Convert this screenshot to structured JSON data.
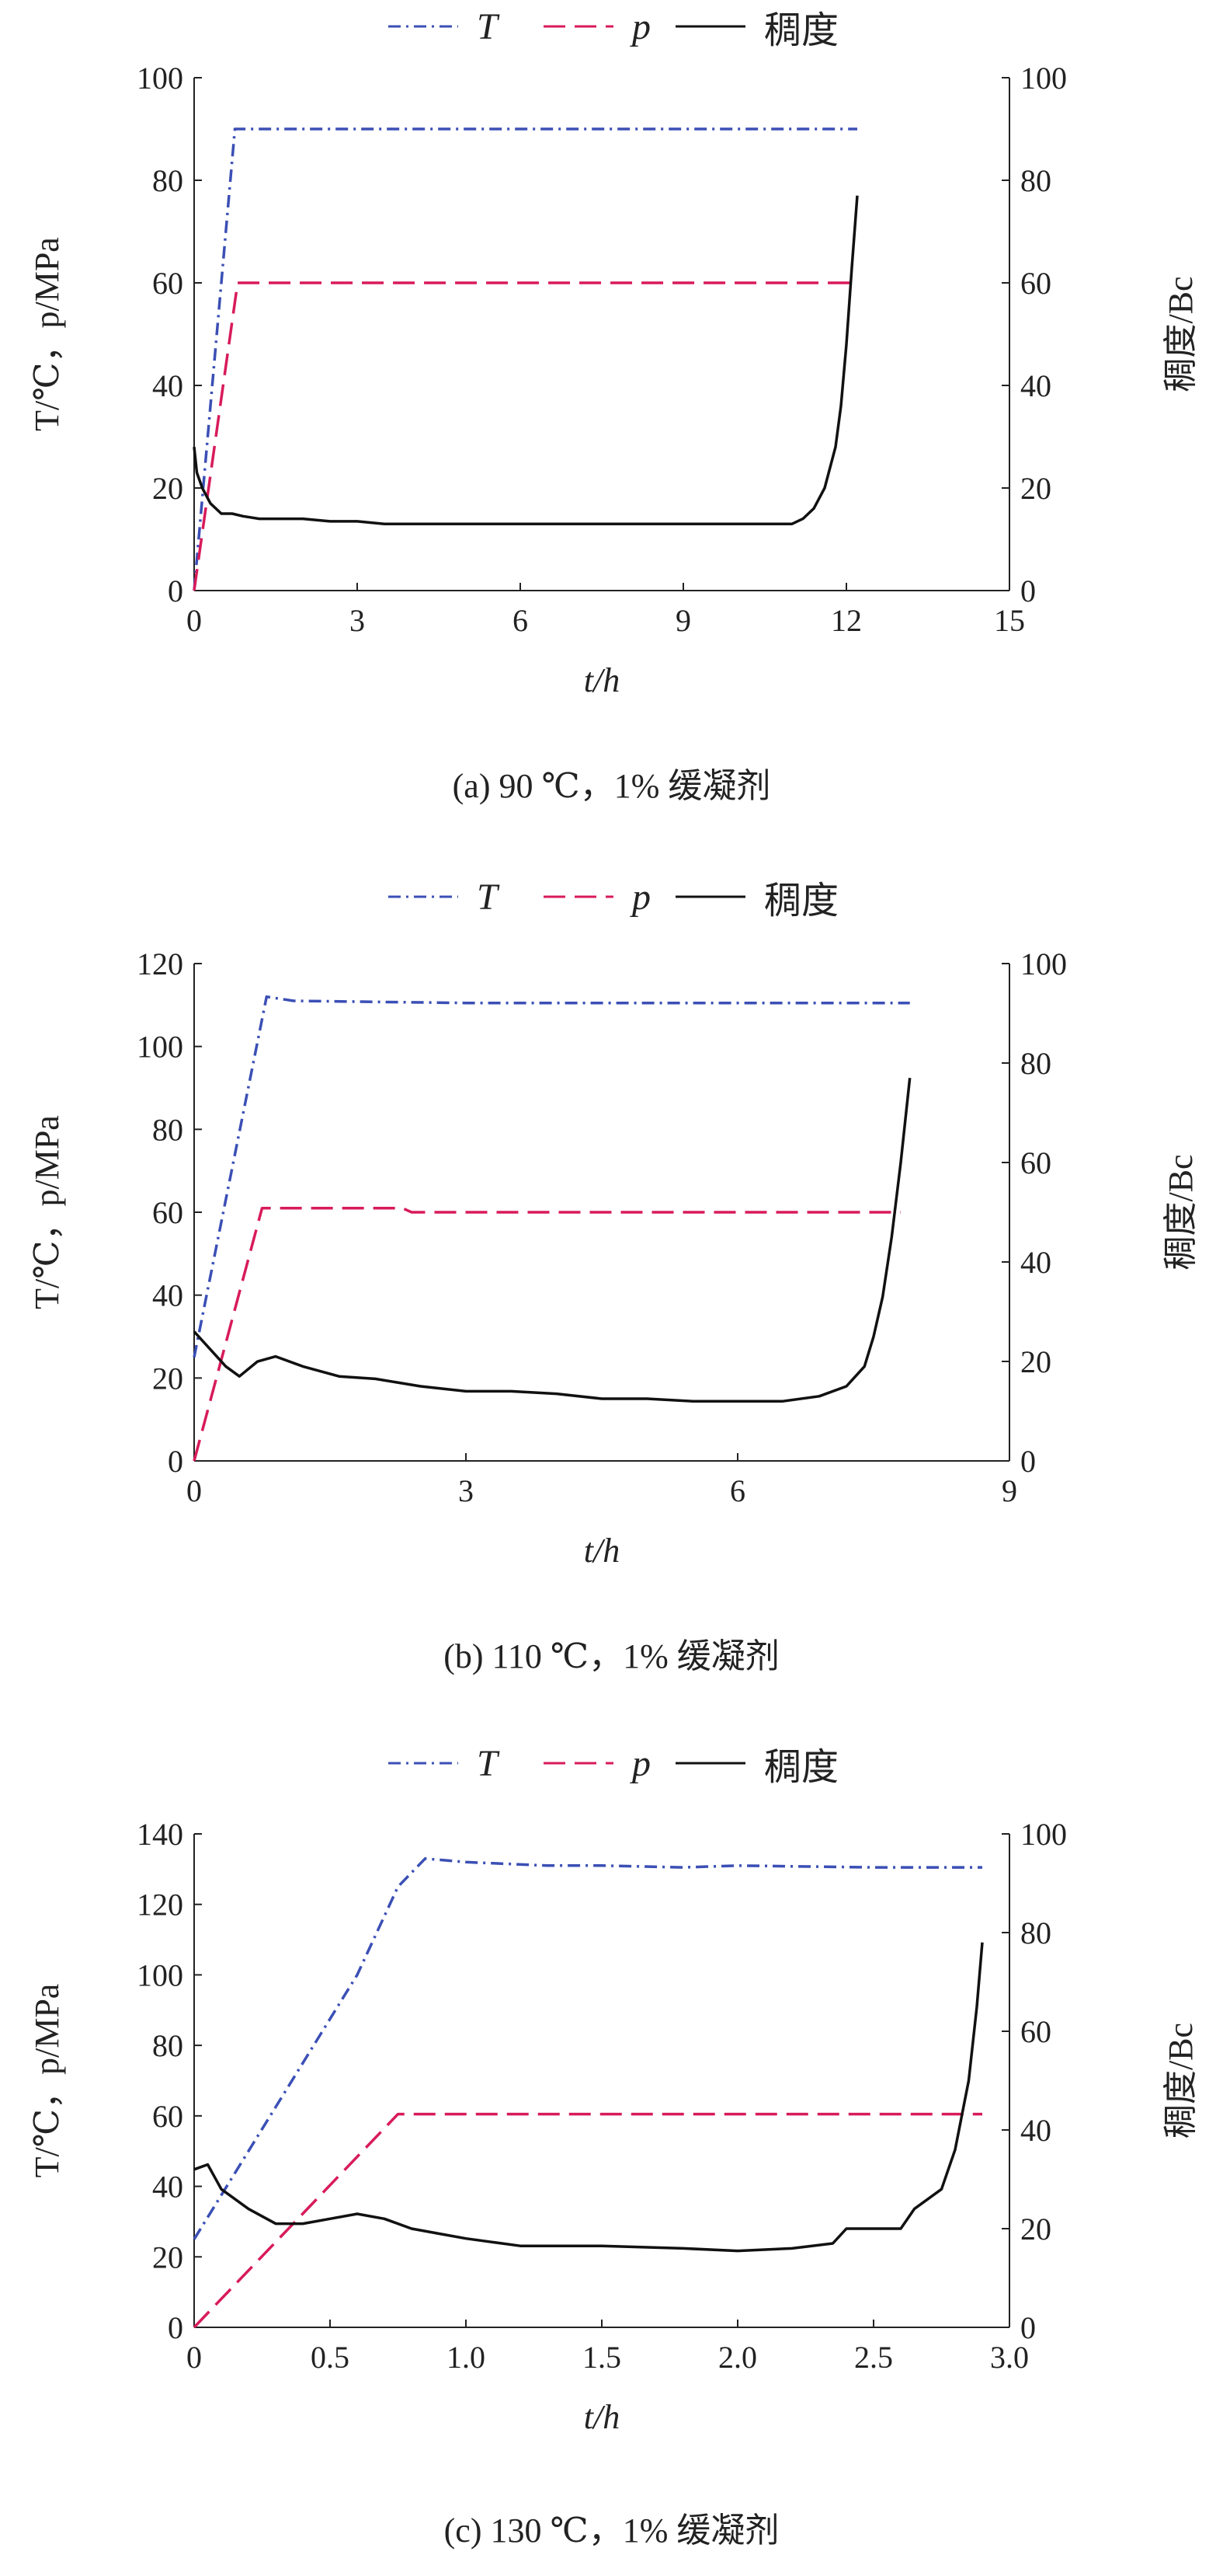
{
  "legend": {
    "T": "T",
    "p": "p",
    "consistency": "稠度"
  },
  "axes": {
    "xlabel": "t/h",
    "ylabel_left": "T/℃，p/MPa",
    "ylabel_right": "稠度/Bc"
  },
  "colors": {
    "T": "#3b4fb5",
    "p": "#d81b5a",
    "consistency": "#111111",
    "axis": "#222222"
  },
  "chart_data": [
    {
      "type": "line",
      "caption": "(a) 90 ℃，1% 缓凝剂",
      "xlabel": "t/h",
      "ylabel": "T/℃，p/MPa",
      "ylabel_right": "稠度/Bc",
      "xlim": [
        0,
        15
      ],
      "ylim": [
        0,
        100
      ],
      "ylim_right": [
        0,
        100
      ],
      "xticks": [
        "0",
        "3",
        "6",
        "9",
        "12",
        "15"
      ],
      "yticks": [
        "0",
        "20",
        "40",
        "60",
        "80",
        "100"
      ],
      "yticks_right": [
        "0",
        "20",
        "40",
        "60",
        "80",
        "100"
      ],
      "series": [
        {
          "name": "T",
          "axis": "left",
          "style": "dashdot",
          "x": [
            0,
            0.75,
            1.0,
            12.2
          ],
          "y": [
            0,
            90,
            90,
            90
          ]
        },
        {
          "name": "p",
          "axis": "left",
          "style": "dash",
          "x": [
            0,
            0.8,
            1.0,
            12.2
          ],
          "y": [
            0,
            60,
            60,
            60
          ]
        },
        {
          "name": "稠度",
          "axis": "right",
          "style": "solid",
          "x": [
            0,
            0.05,
            0.15,
            0.3,
            0.5,
            0.7,
            0.9,
            1.2,
            1.6,
            2.0,
            2.5,
            3.0,
            3.5,
            4.5,
            6,
            7.5,
            9,
            10.5,
            11.0,
            11.2,
            11.4,
            11.6,
            11.8,
            11.9,
            12.0,
            12.1,
            12.2
          ],
          "y": [
            28,
            23,
            20,
            17,
            15,
            15,
            14.5,
            14,
            14,
            14,
            13.5,
            13.5,
            13,
            13,
            13,
            13,
            13,
            13,
            13,
            14,
            16,
            20,
            28,
            36,
            48,
            63,
            77
          ]
        }
      ]
    },
    {
      "type": "line",
      "caption": "(b) 110 ℃，1% 缓凝剂",
      "xlabel": "t/h",
      "ylabel": "T/℃，p/MPa",
      "ylabel_right": "稠度/Bc",
      "xlim": [
        0,
        9
      ],
      "ylim": [
        0,
        120
      ],
      "ylim_right": [
        0,
        100
      ],
      "xticks": [
        "0",
        "3",
        "6",
        "9"
      ],
      "yticks": [
        "0",
        "20",
        "40",
        "60",
        "80",
        "100",
        "120"
      ],
      "yticks_right": [
        "0",
        "20",
        "40",
        "60",
        "80",
        "100"
      ],
      "series": [
        {
          "name": "T",
          "axis": "left",
          "style": "dashdot",
          "x": [
            0,
            0.8,
            1.1,
            3,
            6,
            7.9
          ],
          "y": [
            25,
            112,
            111,
            110.5,
            110.5,
            110.5
          ]
        },
        {
          "name": "p",
          "axis": "left",
          "style": "dash",
          "x": [
            0,
            0.75,
            2.3,
            2.4,
            7.8
          ],
          "y": [
            0,
            61,
            61,
            60,
            60
          ]
        },
        {
          "name": "稠度",
          "axis": "right",
          "style": "solid",
          "x": [
            0,
            0.1,
            0.2,
            0.35,
            0.5,
            0.7,
            0.9,
            1.2,
            1.6,
            2.0,
            2.5,
            3.0,
            3.5,
            4.0,
            4.5,
            5.0,
            5.5,
            6.0,
            6.5,
            6.9,
            7.2,
            7.4,
            7.5,
            7.6,
            7.7,
            7.8,
            7.9
          ],
          "y": [
            26,
            24,
            22,
            19,
            17,
            20,
            21,
            19,
            17,
            16.5,
            15,
            14,
            14,
            13.5,
            12.5,
            12.5,
            12,
            12,
            12,
            13,
            15,
            19,
            25,
            33,
            45,
            60,
            77
          ]
        }
      ]
    },
    {
      "type": "line",
      "caption": "(c) 130 ℃，1% 缓凝剂",
      "xlabel": "t/h",
      "ylabel": "T/℃，p/MPa",
      "ylabel_right": "稠度/Bc",
      "xlim": [
        0,
        3.0
      ],
      "ylim": [
        0,
        140
      ],
      "ylim_right": [
        0,
        100
      ],
      "xticks": [
        "0",
        "0.5",
        "1.0",
        "1.5",
        "2.0",
        "2.5",
        "3.0"
      ],
      "yticks": [
        "0",
        "20",
        "40",
        "60",
        "80",
        "100",
        "120",
        "140"
      ],
      "yticks_right": [
        "0",
        "20",
        "40",
        "60",
        "80",
        "100"
      ],
      "series": [
        {
          "name": "T",
          "axis": "left",
          "style": "dashdot",
          "x": [
            0,
            0.2,
            0.4,
            0.6,
            0.75,
            0.85,
            1.0,
            1.3,
            1.5,
            1.8,
            2.0,
            2.5,
            2.9
          ],
          "y": [
            25,
            50,
            75,
            100,
            125,
            133,
            132,
            131,
            131,
            130.5,
            131,
            130.5,
            130.5
          ]
        },
        {
          "name": "p",
          "axis": "left",
          "style": "dash",
          "x": [
            0,
            0.75,
            1.0,
            2.9
          ],
          "y": [
            0,
            60.5,
            60.5,
            60.5
          ]
        },
        {
          "name": "稠度",
          "axis": "right",
          "style": "solid",
          "x": [
            0,
            0.05,
            0.1,
            0.2,
            0.3,
            0.4,
            0.5,
            0.6,
            0.7,
            0.8,
            0.9,
            1.0,
            1.2,
            1.5,
            1.8,
            2.0,
            2.2,
            2.35,
            2.4,
            2.6,
            2.65,
            2.75,
            2.8,
            2.85,
            2.88,
            2.9
          ],
          "y": [
            32,
            33,
            28,
            24,
            21,
            21,
            22,
            23,
            22,
            20,
            19,
            18,
            16.5,
            16.5,
            16,
            15.5,
            16,
            17,
            20,
            20,
            24,
            28,
            36,
            50,
            65,
            78
          ]
        }
      ]
    }
  ]
}
